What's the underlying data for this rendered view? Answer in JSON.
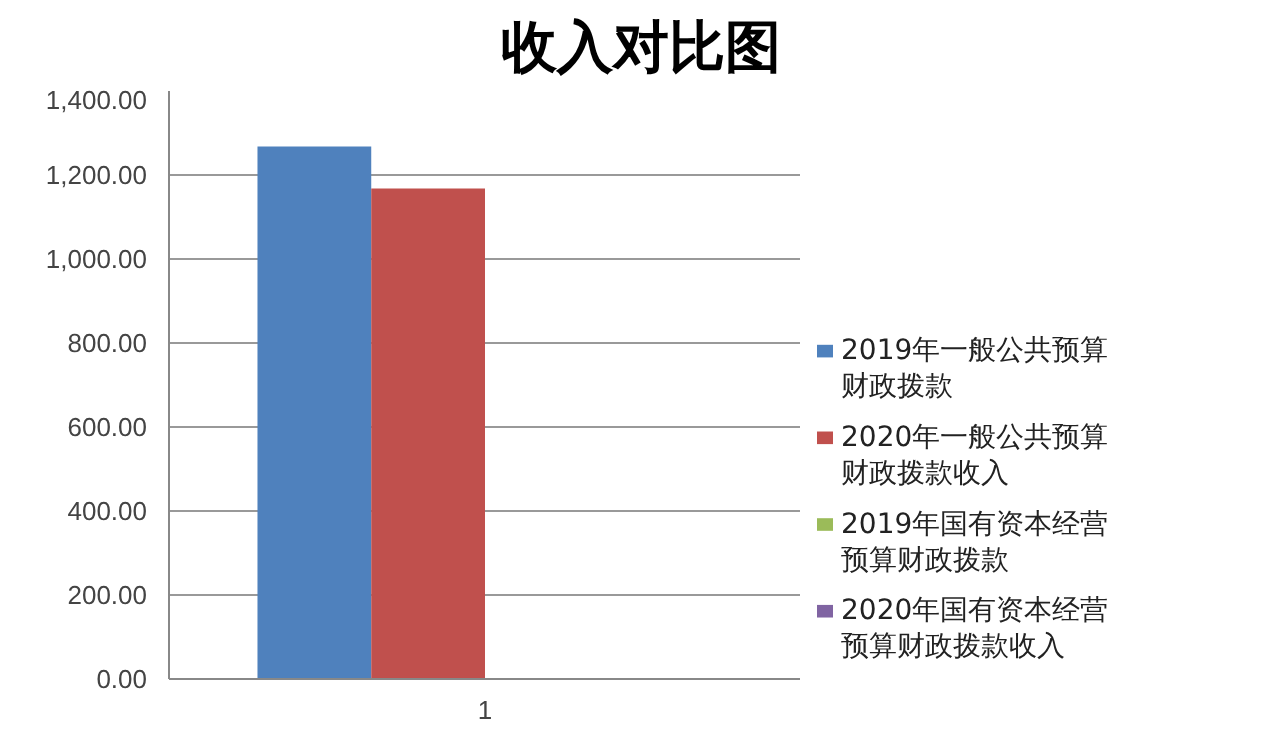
{
  "chart_data": {
    "type": "bar",
    "title": "收入对比图",
    "categories": [
      "1"
    ],
    "series": [
      {
        "name": "2019年一般公共预算财政拨款",
        "color": "#4f81bd",
        "values": [
          1268
        ]
      },
      {
        "name": "2020年一般公共预算财政拨款收入",
        "color": "#c0504d",
        "values": [
          1168
        ]
      },
      {
        "name": "2019年国有资本经营预算财政拨款",
        "color": "#9bbb59",
        "values": [
          0
        ]
      },
      {
        "name": "2020年国有资本经营预算财政拨款收入",
        "color": "#8064a2",
        "values": [
          0
        ]
      }
    ],
    "ylim": [
      0,
      1400
    ],
    "yticks": [
      {
        "value": 0,
        "label": "0.00"
      },
      {
        "value": 200,
        "label": "200.00"
      },
      {
        "value": 400,
        "label": "400.00"
      },
      {
        "value": 600,
        "label": "600.00"
      },
      {
        "value": 800,
        "label": "800.00"
      },
      {
        "value": 1000,
        "label": "1,000.00"
      },
      {
        "value": 1200,
        "label": "1,200.00"
      },
      {
        "value": 1400,
        "label": "1,400.00"
      }
    ],
    "grid": "y",
    "legend": "right"
  }
}
